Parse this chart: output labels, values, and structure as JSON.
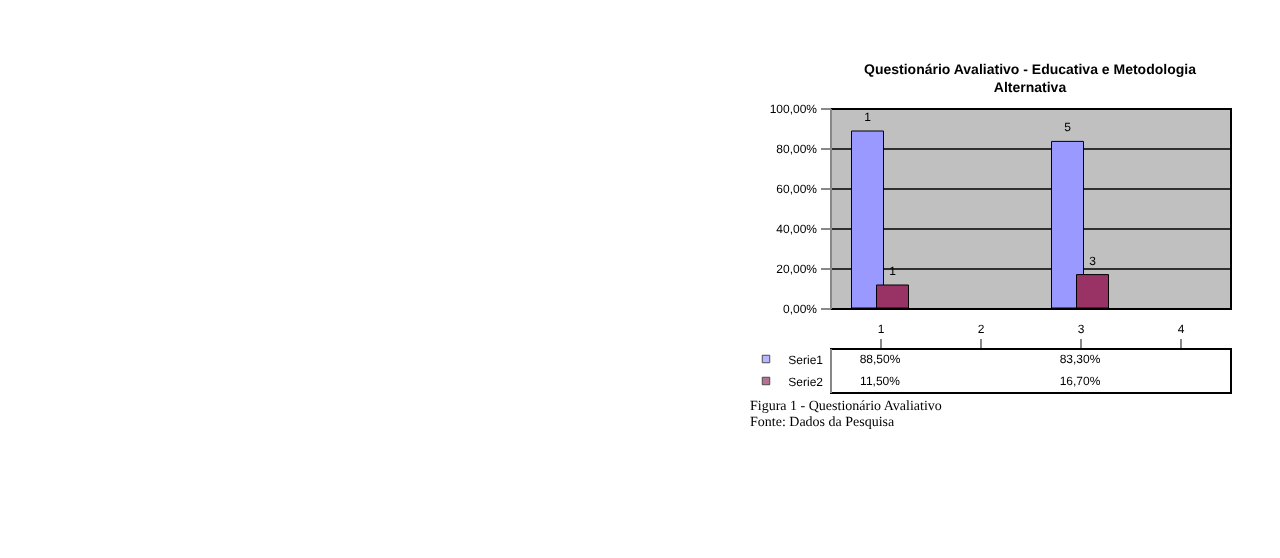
{
  "chart_data": {
    "type": "bar",
    "title": [
      "Questionário Avaliativo -  Educativa e Metodologia",
      "Alternativa"
    ],
    "categories": [
      "1",
      "2",
      "3",
      "4"
    ],
    "series": [
      {
        "name": "Serie1",
        "color": "#9999ff",
        "values": [
          88.5,
          null,
          83.3,
          null
        ],
        "value_labels": [
          "88,50%",
          null,
          "83,30%",
          null
        ]
      },
      {
        "name": "Serie2",
        "color": "#993366",
        "values": [
          11.5,
          null,
          16.7,
          null
        ],
        "value_labels": [
          "11,50%",
          null,
          "16,70%",
          null
        ]
      }
    ],
    "ylim": [
      0,
      100
    ],
    "yticks": [
      {
        "value": 0,
        "label": "0,00%"
      },
      {
        "value": 20,
        "label": "20,00%"
      },
      {
        "value": 40,
        "label": "40,00%"
      },
      {
        "value": 60,
        "label": "60,00%"
      },
      {
        "value": 80,
        "label": "80,00%"
      },
      {
        "value": 100,
        "label": "100,00%"
      }
    ],
    "grid": "y",
    "legend": "bottom",
    "annotations": [
      {
        "text": "1",
        "x": "1",
        "y": 88.5
      },
      {
        "text": "1",
        "x": "1",
        "y": 11.5
      },
      {
        "text": "5",
        "x": "3",
        "y": 83.3
      },
      {
        "text": "3",
        "x": "3",
        "y": 16.7
      },
      "Figura 1 - Questionário Avaliativo",
      "Fonte: Dados da Pesquisa"
    ]
  }
}
